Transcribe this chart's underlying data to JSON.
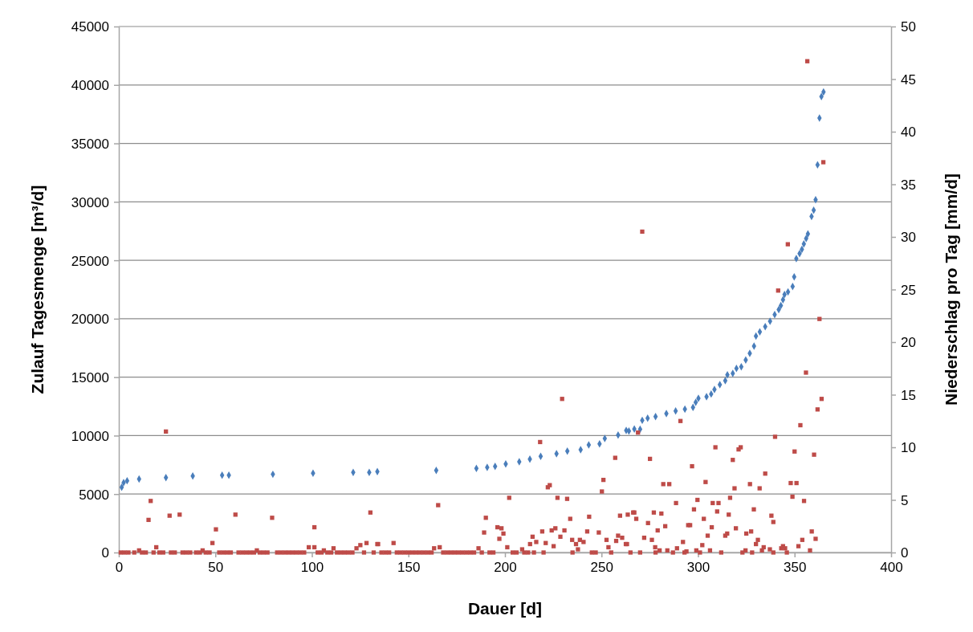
{
  "chart_data": {
    "type": "scatter",
    "xlabel": "Dauer [d]",
    "ylabel": "Zulauf Tagesmenge [m³/d]",
    "y2label": "Niederschlag pro Tag [mm/d]",
    "xlim": [
      0,
      400
    ],
    "xticks": [
      0,
      50,
      100,
      150,
      200,
      250,
      300,
      350,
      400
    ],
    "ylim": [
      0,
      45000
    ],
    "yticks": [
      0,
      5000,
      10000,
      15000,
      20000,
      25000,
      30000,
      35000,
      40000,
      45000
    ],
    "y2lim": [
      0,
      50
    ],
    "y2ticks": [
      0,
      5,
      10,
      15,
      20,
      25,
      30,
      35,
      40,
      45,
      50
    ],
    "grid": "y",
    "series": [
      {
        "color": "#4a7ebb",
        "marker": "diamond",
        "x": [
          1.5,
          2.5,
          4.3,
          10.5,
          24.4,
          38.3,
          53.5,
          57,
          79.8,
          100.6,
          121.4,
          129.7,
          133.9,
          164.4,
          185.2,
          190.8,
          194.9,
          200.4,
          207.4,
          212.9,
          218.5,
          226.7,
          232.3,
          239.2,
          243.4,
          249,
          251.7,
          258.6,
          262.8,
          264.2,
          267,
          270,
          271.1,
          273.9,
          278,
          283.6,
          288.4,
          293.2,
          297.4,
          298.8,
          300.2,
          304.4,
          306.8,
          308.5,
          311.3,
          314.1,
          315.2,
          318,
          319.9,
          322.4,
          324.7,
          326.8,
          329,
          330,
          332,
          334.8,
          337.3,
          339.7,
          341.8,
          342.9,
          344,
          344.8,
          346.6,
          349,
          349.8,
          350.9,
          352.6,
          353.8,
          354.8,
          356,
          356.9,
          358.8,
          359.9,
          360.9,
          361.9,
          362.9,
          363.9,
          365
        ],
        "values": [
          5590,
          5980,
          6140,
          6280,
          6410,
          6550,
          6620,
          6620,
          6690,
          6780,
          6850,
          6850,
          6920,
          7030,
          7190,
          7280,
          7370,
          7580,
          7760,
          7990,
          8220,
          8450,
          8680,
          8790,
          9200,
          9300,
          9760,
          10050,
          10440,
          10390,
          10560,
          10550,
          11310,
          11490,
          11630,
          11890,
          12110,
          12270,
          12410,
          12850,
          13190,
          13330,
          13560,
          13950,
          14360,
          14700,
          15200,
          15320,
          15750,
          15890,
          16470,
          17040,
          17660,
          18520,
          18870,
          19330,
          19780,
          20360,
          20790,
          21130,
          21620,
          22070,
          22300,
          22760,
          23590,
          25140,
          25580,
          25940,
          26400,
          26860,
          27250,
          28760,
          29290,
          30180,
          33160,
          37170,
          39000,
          39400
        ]
      },
      {
        "color": "#be4b48",
        "marker": "square",
        "axis": "y2",
        "x": [
          10.5,
          15.4,
          16.5,
          19.4,
          24.4,
          26.3,
          31.5,
          43.4,
          48.5,
          50.3,
          60.4,
          71.5,
          79.4,
          98.4,
          101.3,
          101.3,
          106.2,
          111.2,
          123.1,
          125.1,
          128.3,
          130.3,
          133.9,
          134.3,
          142.3,
          163.3,
          165.4,
          166.2,
          186.3,
          189.2,
          190.1,
          196.1,
          197.1,
          198.2,
          199.2,
          201.2,
          202.2,
          208.9,
          213,
          214.3,
          216.2,
          218.2,
          219.3,
          221.1,
          222.2,
          223.2,
          224.2,
          225.2,
          226.1,
          227.2,
          228.7,
          229.6,
          230.8,
          232.2,
          233.8,
          234.8,
          236.8,
          237.8,
          238.8,
          240.7,
          242.6,
          243.6,
          248.6,
          250.2,
          251,
          252.6,
          253.6,
          257.1,
          257.6,
          258.6,
          259.6,
          260.7,
          262.6,
          263.2,
          263.6,
          266.4,
          267,
          268,
          268.9,
          271.1,
          272.1,
          274.1,
          275.1,
          276.1,
          277.1,
          277.8,
          279.1,
          280.1,
          281,
          282,
          283,
          284.1,
          285.1,
          288.6,
          289.1,
          290.9,
          292.2,
          294,
          294.9,
          295.9,
          296.9,
          297.9,
          299.1,
          299.7,
          302.2,
          303,
          303.9,
          305,
          306.2,
          307.1,
          307.6,
          309,
          309.9,
          310.6,
          314.1,
          315.1,
          315.9,
          316.6,
          318,
          318.9,
          319.6,
          321,
          322.1,
          324.6,
          325,
          326.9,
          327.5,
          328.9,
          330,
          331,
          331.9,
          333.1,
          334,
          334.8,
          337.2,
          338,
          339,
          339.9,
          341.5,
          343.1,
          344,
          345.1,
          346.5,
          348,
          348.9,
          350,
          351,
          352,
          353,
          354,
          354.9,
          355.9,
          358,
          358.9,
          360.1,
          360.9,
          361.9,
          356.6,
          362.9,
          364,
          364.9,
          1,
          3,
          5,
          8,
          12,
          14,
          18,
          21,
          23,
          27,
          29,
          33,
          35,
          37,
          40,
          42,
          45,
          47,
          52,
          54,
          56,
          58,
          62,
          64,
          66,
          68,
          70,
          73,
          75,
          77,
          82,
          84,
          86,
          88,
          90,
          92,
          94,
          96,
          103,
          105,
          108,
          110,
          113,
          115,
          117,
          119,
          121,
          127,
          132,
          136,
          138,
          140,
          144,
          146,
          148,
          150,
          152,
          154,
          156,
          158,
          160,
          162,
          168,
          170,
          172,
          174,
          176,
          178,
          180,
          182,
          184,
          188,
          192,
          194,
          204,
          206,
          210,
          212,
          215,
          220,
          235,
          245,
          247,
          255,
          265,
          270,
          278,
          287,
          293,
          301,
          312,
          323,
          328,
          339,
          346
        ],
        "values": [
          0.2,
          3.1,
          4.9,
          0.5,
          11.5,
          3.5,
          3.6,
          0.2,
          0.9,
          2.2,
          3.6,
          0.2,
          3.3,
          0.5,
          2.4,
          0.5,
          0.2,
          0.4,
          0.4,
          0.7,
          0.9,
          3.8,
          0.8,
          0.8,
          0.9,
          0.4,
          4.5,
          0.5,
          0.4,
          1.9,
          3.3,
          2.4,
          1.3,
          2.3,
          1.8,
          0.5,
          5.2,
          0.3,
          0.8,
          1.5,
          1.0,
          10.5,
          2.0,
          0.9,
          6.2,
          6.4,
          2.1,
          0.6,
          2.3,
          5.2,
          1.5,
          14.6,
          2.1,
          5.1,
          3.2,
          1.2,
          0.8,
          0.3,
          1.2,
          1.0,
          2.0,
          3.4,
          1.9,
          5.8,
          6.9,
          1.2,
          0.5,
          9.0,
          1.1,
          1.6,
          3.5,
          1.4,
          0.8,
          0.8,
          3.6,
          3.8,
          3.8,
          3.2,
          11.4,
          30.5,
          1.4,
          2.8,
          8.9,
          1.2,
          3.8,
          0.5,
          2.1,
          0.2,
          3.7,
          6.5,
          2.5,
          0.2,
          6.5,
          4.7,
          0.4,
          12.5,
          1.0,
          0.1,
          2.6,
          2.6,
          8.2,
          4.1,
          0.2,
          5.0,
          0.7,
          3.2,
          6.7,
          1.6,
          0.2,
          2.4,
          4.7,
          10.0,
          3.9,
          4.7,
          1.6,
          1.8,
          3.6,
          5.2,
          8.8,
          6.1,
          2.3,
          9.8,
          10.0,
          0.2,
          1.8,
          6.5,
          2.0,
          4.1,
          0.8,
          1.2,
          6.1,
          0.2,
          0.5,
          7.5,
          0.3,
          3.5,
          2.9,
          11.0,
          24.9,
          0.4,
          0.6,
          0.4,
          29.3,
          6.6,
          5.3,
          9.6,
          6.6,
          0.6,
          12.1,
          1.2,
          4.9,
          17.1,
          0.2,
          2.0,
          9.3,
          1.3,
          13.6,
          46.7,
          22.2,
          14.6,
          37.1,
          0,
          0,
          0,
          0,
          0,
          0,
          0,
          0,
          0,
          0,
          0,
          0,
          0,
          0,
          0,
          0,
          0,
          0,
          0,
          0,
          0,
          0,
          0,
          0,
          0,
          0,
          0,
          0,
          0,
          0,
          0,
          0,
          0,
          0,
          0,
          0,
          0,
          0,
          0,
          0,
          0,
          0,
          0,
          0,
          0,
          0,
          0,
          0,
          0,
          0,
          0,
          0,
          0,
          0,
          0,
          0,
          0,
          0,
          0,
          0,
          0,
          0,
          0,
          0,
          0,
          0,
          0,
          0,
          0,
          0,
          0,
          0,
          0,
          0,
          0,
          0,
          0,
          0,
          0,
          0,
          0,
          0,
          0,
          0,
          0,
          0,
          0,
          0,
          0,
          0,
          0,
          0,
          0,
          0,
          0
        ]
      }
    ]
  }
}
